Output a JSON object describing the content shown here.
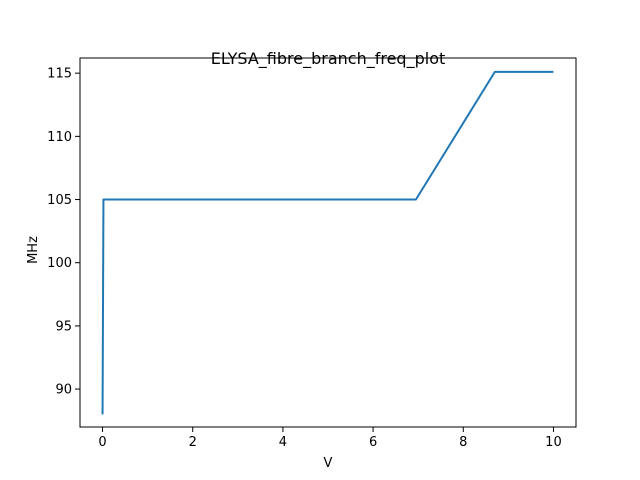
{
  "chart_data": {
    "type": "line",
    "title": "ELYSA_fibre_branch_freq_plot",
    "xlabel": "V",
    "ylabel": "MHz",
    "xlim": [
      -0.5,
      10.5
    ],
    "ylim": [
      87.0,
      116.2
    ],
    "xticks": [
      0,
      2,
      4,
      6,
      8,
      10
    ],
    "yticks": [
      90,
      95,
      100,
      105,
      110,
      115
    ],
    "grid": false,
    "series": [
      {
        "color": "#1f77b4",
        "x": [
          0.0,
          0.02,
          6.95,
          8.7,
          10.0
        ],
        "y": [
          88.0,
          105.0,
          105.0,
          115.1,
          115.1
        ]
      }
    ]
  }
}
